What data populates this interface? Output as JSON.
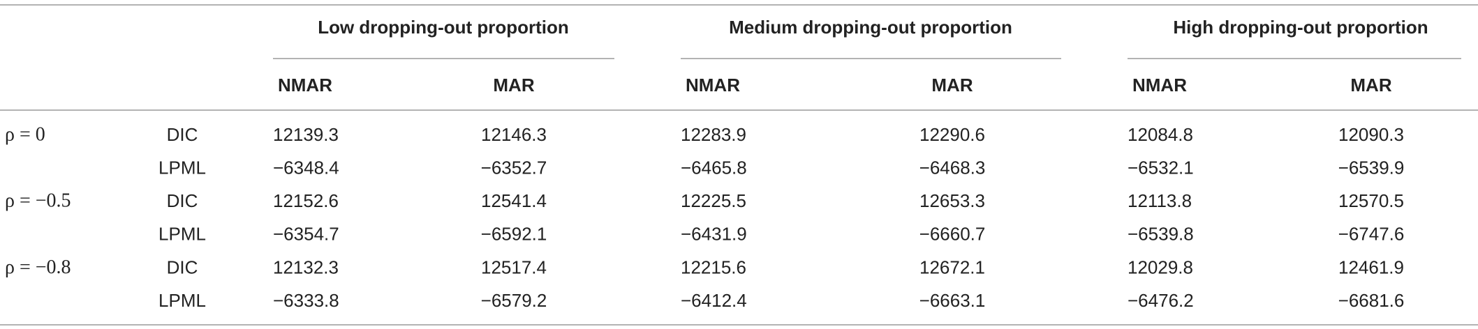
{
  "table": {
    "groups": [
      "Low dropping-out proportion",
      "Medium dropping-out proportion",
      "High dropping-out proportion"
    ],
    "subcolumns": [
      "NMAR",
      "MAR",
      "NMAR",
      "MAR",
      "NMAR",
      "MAR"
    ],
    "row_groups": [
      {
        "label": "ρ = 0",
        "rows": [
          {
            "measure": "DIC",
            "values": [
              "12139.3",
              "12146.3",
              "12283.9",
              "12290.6",
              "12084.8",
              "12090.3"
            ]
          },
          {
            "measure": "LPML",
            "values": [
              "−6348.4",
              "−6352.7",
              "−6465.8",
              "−6468.3",
              "−6532.1",
              "−6539.9"
            ]
          }
        ]
      },
      {
        "label": "ρ = −0.5",
        "rows": [
          {
            "measure": "DIC",
            "values": [
              "12152.6",
              "12541.4",
              "12225.5",
              "12653.3",
              "12113.8",
              "12570.5"
            ]
          },
          {
            "measure": "LPML",
            "values": [
              "−6354.7",
              "−6592.1",
              "−6431.9",
              "−6660.7",
              "−6539.8",
              "−6747.6"
            ]
          }
        ]
      },
      {
        "label": "ρ = −0.8",
        "rows": [
          {
            "measure": "DIC",
            "values": [
              "12132.3",
              "12517.4",
              "12215.6",
              "12672.1",
              "12029.8",
              "12461.9"
            ]
          },
          {
            "measure": "LPML",
            "values": [
              "−6333.8",
              "−6579.2",
              "−6412.4",
              "−6663.1",
              "−6476.2",
              "−6681.6"
            ]
          }
        ]
      }
    ]
  }
}
